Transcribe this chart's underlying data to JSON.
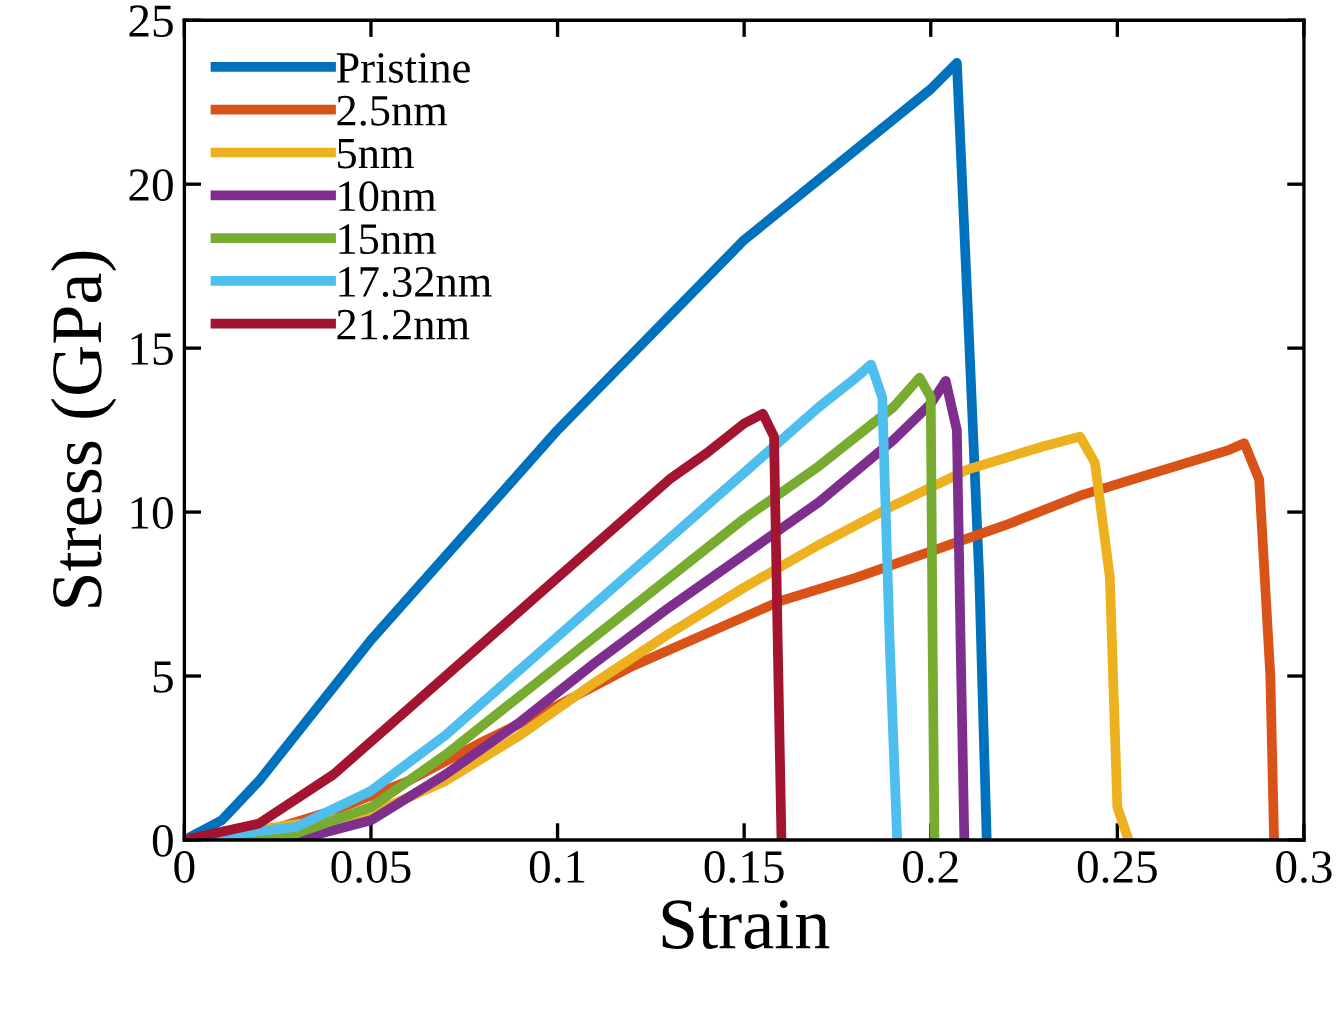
{
  "chart_data": {
    "type": "line",
    "xlabel": "Strain",
    "ylabel": "Stress (GPa)",
    "xlim": [
      0,
      0.3
    ],
    "ylim": [
      0,
      25
    ],
    "xticks": [
      0,
      0.05,
      0.1,
      0.15,
      0.2,
      0.25,
      0.3
    ],
    "yticks": [
      0,
      5,
      10,
      15,
      20,
      25
    ],
    "grid": false,
    "legend": "top left",
    "marker": "none",
    "line_style": "solid",
    "series": [
      {
        "name": "Pristine",
        "color": "#0072bd",
        "x": [
          0,
          0.01,
          0.02,
          0.05,
          0.1,
          0.15,
          0.2,
          0.207,
          0.21,
          0.213,
          0.215
        ],
        "values": [
          0,
          0.6,
          1.8,
          6.1,
          12.5,
          18.3,
          22.9,
          23.7,
          16,
          8,
          0
        ]
      },
      {
        "name": "2.5nm",
        "color": "#d95319",
        "x": [
          0,
          0.02,
          0.04,
          0.06,
          0.08,
          0.1,
          0.12,
          0.14,
          0.16,
          0.18,
          0.2,
          0.22,
          0.24,
          0.26,
          0.28,
          0.284,
          0.288,
          0.291,
          0.292
        ],
        "values": [
          0,
          0.2,
          0.9,
          1.8,
          3.0,
          4.1,
          5.3,
          6.3,
          7.3,
          8.0,
          8.8,
          9.6,
          10.5,
          11.2,
          11.9,
          12.1,
          11.0,
          5,
          0
        ]
      },
      {
        "name": "5nm",
        "color": "#edb120",
        "x": [
          0,
          0.05,
          0.07,
          0.09,
          0.11,
          0.13,
          0.15,
          0.17,
          0.19,
          0.21,
          0.23,
          0.24,
          0.244,
          0.248,
          0.25,
          0.253
        ],
        "values": [
          0,
          0.8,
          1.8,
          3.2,
          4.8,
          6.3,
          7.7,
          9.0,
          10.2,
          11.3,
          12.0,
          12.3,
          11.5,
          8,
          1,
          0
        ]
      },
      {
        "name": "10nm",
        "color": "#7e2f8e",
        "x": [
          0,
          0.03,
          0.05,
          0.07,
          0.09,
          0.11,
          0.13,
          0.15,
          0.17,
          0.19,
          0.2,
          0.204,
          0.207,
          0.208,
          0.209
        ],
        "values": [
          0,
          0,
          0.6,
          2.0,
          3.6,
          5.4,
          7.1,
          8.7,
          10.3,
          12.2,
          13.3,
          14.0,
          12.5,
          6,
          0
        ]
      },
      {
        "name": "15nm",
        "color": "#77ac30",
        "x": [
          0,
          0.03,
          0.05,
          0.07,
          0.09,
          0.11,
          0.13,
          0.15,
          0.17,
          0.19,
          0.197,
          0.2,
          0.2005,
          0.201
        ],
        "values": [
          0,
          0.2,
          1.0,
          2.6,
          4.4,
          6.2,
          8.0,
          9.8,
          11.4,
          13.2,
          14.1,
          13.5,
          6,
          0
        ]
      },
      {
        "name": "17.32nm",
        "color": "#4dbeee",
        "x": [
          0,
          0.03,
          0.05,
          0.07,
          0.09,
          0.11,
          0.13,
          0.15,
          0.17,
          0.18,
          0.184,
          0.187,
          0.189,
          0.191
        ],
        "values": [
          0,
          0.4,
          1.5,
          3.2,
          5.2,
          7.2,
          9.2,
          11.2,
          13.2,
          14.1,
          14.5,
          13.5,
          6,
          0
        ]
      },
      {
        "name": "21.2nm",
        "color": "#a2142f",
        "x": [
          0,
          0.02,
          0.04,
          0.06,
          0.08,
          0.1,
          0.12,
          0.13,
          0.14,
          0.15,
          0.155,
          0.158,
          0.159,
          0.16
        ],
        "values": [
          0,
          0.5,
          2.0,
          4.0,
          6.0,
          8.0,
          10.0,
          11.0,
          11.8,
          12.7,
          13.0,
          12.3,
          6,
          0
        ]
      }
    ]
  }
}
